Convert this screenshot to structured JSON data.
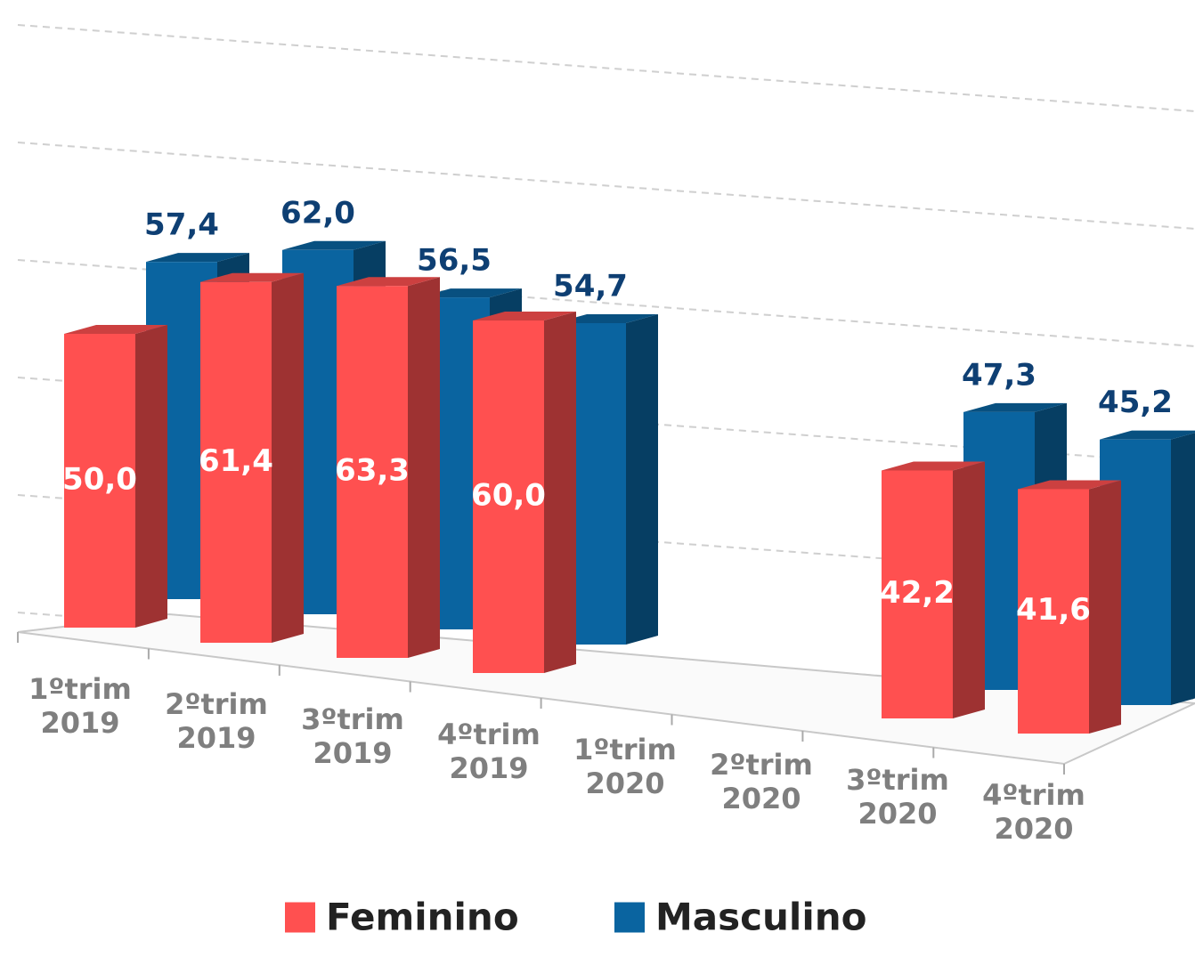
{
  "chart_data": {
    "type": "bar3d",
    "categories": [
      "1ºtrim 2019",
      "2ºtrim 2019",
      "3ºtrim 2019",
      "4ºtrim 2019",
      "1ºtrim 2020",
      "2ºtrim 2020",
      "3ºtrim 2020",
      "4ºtrim 2020"
    ],
    "series": [
      {
        "name": "Feminino",
        "color": "#ff5050",
        "values": [
          50.0,
          61.4,
          63.3,
          60.0,
          null,
          null,
          42.2,
          41.6
        ],
        "value_labels": [
          "50,0",
          "61,4",
          "63,3",
          "60,0",
          null,
          null,
          "42,2",
          "41,6"
        ]
      },
      {
        "name": "Masculino",
        "color": "#0a64a0",
        "values": [
          57.4,
          62.0,
          56.5,
          54.7,
          null,
          null,
          47.3,
          45.2
        ],
        "value_labels": [
          "57,4",
          "62,0",
          "56,5",
          "54,7",
          null,
          null,
          "47,3",
          "45,2"
        ]
      }
    ],
    "ylim": [
      0,
      100
    ],
    "yticks": [
      0,
      20,
      40,
      60,
      80,
      100
    ],
    "grid": true
  }
}
